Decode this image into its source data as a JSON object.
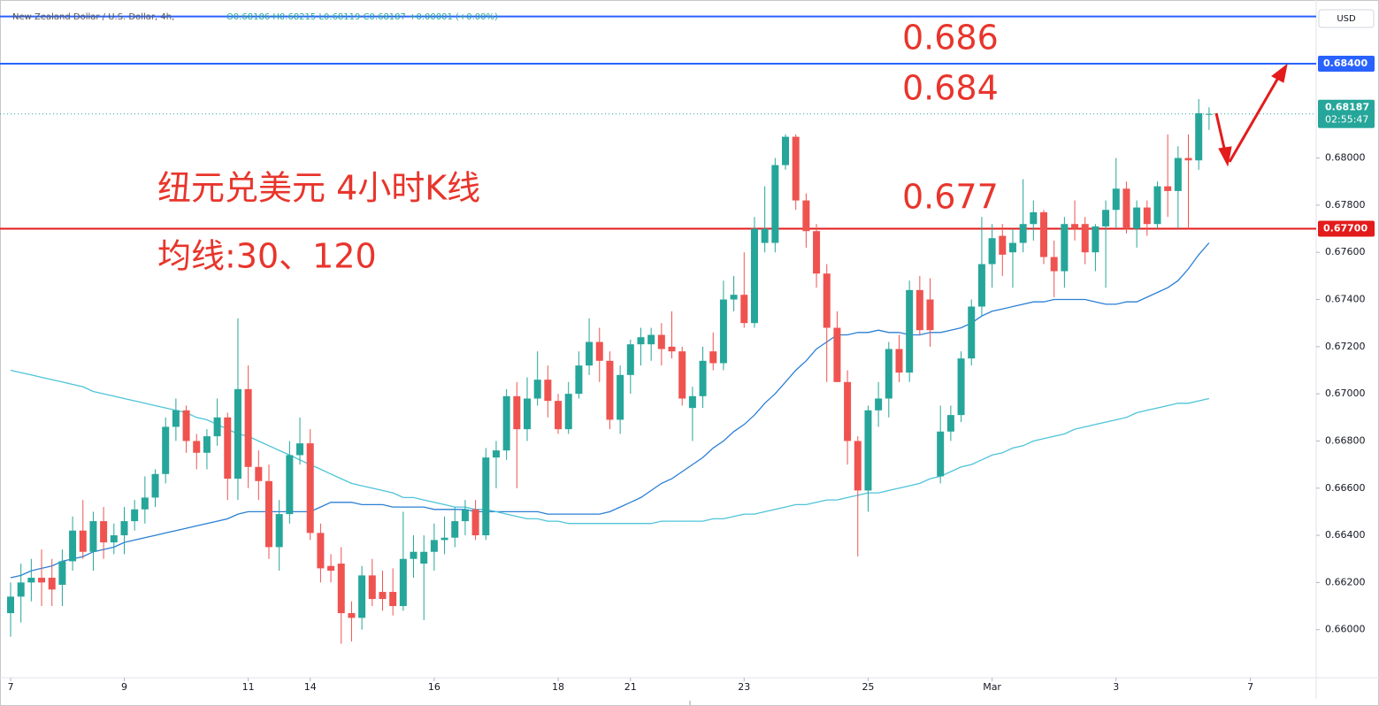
{
  "chart_data": {
    "type": "candlestick",
    "title": "New Zealand Dollar / U.S. Dollar, 4h,",
    "legend_text": "O0.68186 H0.68215 L0.68119 C0.68187 +0.00001 (+0.00%)",
    "currency": "USD",
    "categories": [
      "7",
      null,
      null,
      null,
      null,
      null,
      null,
      null,
      null,
      null,
      null,
      "9",
      null,
      null,
      null,
      null,
      null,
      null,
      null,
      null,
      null,
      null,
      null,
      "11",
      null,
      null,
      null,
      null,
      null,
      "14",
      null,
      null,
      null,
      null,
      null,
      null,
      null,
      null,
      null,
      null,
      null,
      "16",
      null,
      null,
      null,
      null,
      null,
      null,
      null,
      null,
      null,
      null,
      null,
      "18",
      null,
      null,
      null,
      null,
      null,
      null,
      "21",
      null,
      null,
      null,
      null,
      null,
      null,
      null,
      null,
      null,
      null,
      "23",
      null,
      null,
      null,
      null,
      null,
      null,
      null,
      null,
      null,
      null,
      null,
      "25",
      null,
      null,
      null,
      null,
      null,
      null,
      null,
      null,
      null,
      null,
      null,
      "Mar",
      null,
      null,
      null,
      null,
      null,
      null,
      null,
      null,
      null,
      null,
      null,
      "3",
      null,
      null,
      null,
      null,
      null,
      null,
      null,
      null,
      null,
      null,
      null,
      null,
      "7"
    ],
    "open": [
      0.6607,
      0.6614,
      0.662,
      0.6622,
      0.6622,
      0.6619,
      0.6629,
      0.6642,
      0.6633,
      0.6646,
      0.6637,
      0.664,
      0.6646,
      0.6651,
      0.6656,
      0.6666,
      0.6686,
      0.6693,
      0.668,
      0.6675,
      0.6682,
      0.669,
      0.6664,
      0.6702,
      0.6669,
      0.6663,
      0.6635,
      0.6649,
      0.6674,
      0.6679,
      0.6641,
      0.6627,
      0.6628,
      0.6607,
      0.6605,
      0.6623,
      0.6616,
      0.6616,
      0.661,
      0.663,
      0.6628,
      0.6633,
      0.6638,
      0.6639,
      0.6646,
      0.6651,
      0.664,
      0.6673,
      0.6676,
      0.6699,
      0.6685,
      0.6698,
      0.6706,
      0.6697,
      0.6685,
      0.67,
      0.6712,
      0.6722,
      0.6714,
      0.6689,
      0.6708,
      0.6721,
      0.6721,
      0.6725,
      0.672,
      0.6718,
      0.6694,
      0.6699,
      0.6718,
      0.6713,
      0.674,
      0.6742,
      0.673,
      0.6764,
      0.6764,
      0.6797,
      0.6809,
      0.6782,
      0.6769,
      0.6751,
      0.6728,
      0.6705,
      0.668,
      0.6659,
      0.6693,
      0.6698,
      0.6719,
      0.6709,
      0.6744,
      0.674,
      0.6665,
      0.6684,
      0.6691,
      0.6715,
      0.6737,
      0.6755,
      0.6767,
      0.676,
      0.6764,
      0.6772,
      0.6777,
      0.6758,
      0.6752,
      0.6772,
      0.6772,
      0.676,
      0.6771,
      0.6778,
      0.6787,
      0.677,
      0.6779,
      0.6772,
      0.6788,
      0.6786,
      0.68,
      0.6799,
      0.68186,
      null,
      null,
      null,
      null
    ],
    "high": [
      0.662,
      0.6628,
      0.663,
      0.6634,
      0.663,
      0.6634,
      0.6648,
      0.6655,
      0.665,
      0.6652,
      0.6645,
      0.6652,
      0.6655,
      0.6665,
      0.6668,
      0.669,
      0.6698,
      0.6695,
      0.6683,
      0.6685,
      0.6698,
      0.6692,
      0.6732,
      0.6712,
      0.6676,
      0.667,
      0.6655,
      0.668,
      0.669,
      0.6685,
      0.6645,
      0.6632,
      0.6635,
      0.6612,
      0.6627,
      0.663,
      0.6625,
      0.6626,
      0.665,
      0.664,
      0.664,
      0.6645,
      0.6648,
      0.6652,
      0.6655,
      0.6655,
      0.6677,
      0.668,
      0.6702,
      0.6705,
      0.6707,
      0.6718,
      0.6712,
      0.67,
      0.6705,
      0.6718,
      0.6732,
      0.6728,
      0.6718,
      0.6712,
      0.6723,
      0.6728,
      0.6728,
      0.673,
      0.6735,
      0.672,
      0.6703,
      0.672,
      0.6726,
      0.6748,
      0.675,
      0.676,
      0.6775,
      0.6788,
      0.68,
      0.681,
      0.681,
      0.6785,
      0.6772,
      0.6755,
      0.6735,
      0.671,
      0.6682,
      0.6695,
      0.6705,
      0.6722,
      0.6725,
      0.6748,
      0.675,
      0.6749,
      0.6695,
      0.6695,
      0.6718,
      0.674,
      0.6775,
      0.6772,
      0.6772,
      0.677,
      0.6791,
      0.6782,
      0.6778,
      0.6765,
      0.6775,
      0.6782,
      0.6775,
      0.6772,
      0.6782,
      0.68,
      0.679,
      0.6782,
      0.6782,
      0.679,
      0.681,
      0.6805,
      0.681,
      0.6825,
      0.68215,
      null,
      null,
      null,
      null
    ],
    "low": [
      0.6597,
      0.6603,
      0.6612,
      0.661,
      0.661,
      0.661,
      0.6625,
      0.663,
      0.6625,
      0.663,
      0.6632,
      0.6632,
      0.6642,
      0.6645,
      0.6652,
      0.6662,
      0.668,
      0.6675,
      0.6668,
      0.6668,
      0.6678,
      0.6655,
      0.6655,
      0.666,
      0.6655,
      0.663,
      0.6625,
      0.6645,
      0.667,
      0.6638,
      0.662,
      0.662,
      0.6594,
      0.6595,
      0.66,
      0.661,
      0.6608,
      0.6606,
      0.6608,
      0.6622,
      0.6604,
      0.6625,
      0.6632,
      0.6635,
      0.664,
      0.6638,
      0.6638,
      0.666,
      0.6672,
      0.666,
      0.668,
      0.6695,
      0.669,
      0.6683,
      0.6683,
      0.6698,
      0.6708,
      0.6705,
      0.6685,
      0.6683,
      0.67,
      0.6712,
      0.6714,
      0.6712,
      0.6715,
      0.6695,
      0.668,
      0.6694,
      0.671,
      0.671,
      0.6735,
      0.6728,
      0.6728,
      0.676,
      0.676,
      0.6795,
      0.6778,
      0.6762,
      0.6745,
      0.6705,
      0.6705,
      0.667,
      0.6631,
      0.665,
      0.6686,
      0.669,
      0.6705,
      0.6705,
      0.6725,
      0.672,
      0.6662,
      0.668,
      0.6688,
      0.6712,
      0.6733,
      0.6745,
      0.675,
      0.6745,
      0.676,
      0.6765,
      0.6755,
      0.6741,
      0.6745,
      0.6765,
      0.6755,
      0.6752,
      0.6745,
      0.677,
      0.6768,
      0.6762,
      0.6767,
      0.677,
      0.6775,
      0.677,
      0.677,
      0.6795,
      0.68119,
      null,
      null,
      null,
      null
    ],
    "close": [
      0.6614,
      0.662,
      0.6622,
      0.662,
      0.6617,
      0.6629,
      0.6642,
      0.6633,
      0.6646,
      0.6637,
      0.664,
      0.6646,
      0.6651,
      0.6656,
      0.6666,
      0.6686,
      0.6693,
      0.668,
      0.6675,
      0.6682,
      0.669,
      0.6664,
      0.6702,
      0.6669,
      0.6663,
      0.6635,
      0.6649,
      0.6674,
      0.6679,
      0.6641,
      0.6626,
      0.6625,
      0.6607,
      0.6605,
      0.6623,
      0.6613,
      0.6613,
      0.661,
      0.663,
      0.6633,
      0.6633,
      0.6638,
      0.6639,
      0.6646,
      0.6651,
      0.664,
      0.6673,
      0.6676,
      0.6699,
      0.6685,
      0.6698,
      0.6706,
      0.6697,
      0.6685,
      0.67,
      0.6712,
      0.6722,
      0.6714,
      0.6689,
      0.6708,
      0.6721,
      0.6724,
      0.6725,
      0.6719,
      0.6718,
      0.6698,
      0.6699,
      0.6714,
      0.6713,
      0.674,
      0.6742,
      0.673,
      0.677,
      0.677,
      0.6797,
      0.6809,
      0.6782,
      0.6769,
      0.6751,
      0.6728,
      0.6705,
      0.668,
      0.6659,
      0.6693,
      0.6698,
      0.6719,
      0.6709,
      0.6744,
      0.6727,
      0.6727,
      0.6684,
      0.6691,
      0.6715,
      0.6737,
      0.6755,
      0.6766,
      0.6759,
      0.6764,
      0.6772,
      0.6777,
      0.6758,
      0.6752,
      0.6772,
      0.677,
      0.676,
      0.6771,
      0.6778,
      0.6787,
      0.677,
      0.6779,
      0.6772,
      0.6788,
      0.6786,
      0.68,
      0.6799,
      0.6819,
      0.68187,
      null,
      null,
      null,
      null
    ],
    "up_color": "#26a69a",
    "down_color": "#ef5350",
    "series": [
      {
        "type": "line",
        "color": "#2a7fd4",
        "values": [
          0.6622,
          0.6623,
          0.6625,
          0.6626,
          0.6627,
          0.6629,
          0.663,
          0.6631,
          0.6633,
          0.6634,
          0.6635,
          0.6637,
          0.6638,
          0.6639,
          0.664,
          0.6641,
          0.6642,
          0.6643,
          0.6644,
          0.6645,
          0.6646,
          0.6647,
          0.6649,
          0.665,
          0.665,
          0.665,
          0.665,
          0.665,
          0.665,
          0.665,
          0.6652,
          0.6654,
          0.6654,
          0.6654,
          0.6653,
          0.6653,
          0.6653,
          0.6652,
          0.6652,
          0.6652,
          0.6652,
          0.6651,
          0.6651,
          0.6651,
          0.6651,
          0.665,
          0.665,
          0.665,
          0.665,
          0.665,
          0.665,
          0.665,
          0.6649,
          0.6649,
          0.6649,
          0.6649,
          0.6649,
          0.6649,
          0.665,
          0.6652,
          0.6654,
          0.6656,
          0.6659,
          0.6662,
          0.6664,
          0.6667,
          0.667,
          0.6673,
          0.6677,
          0.668,
          0.6684,
          0.6687,
          0.6691,
          0.6696,
          0.67,
          0.6705,
          0.671,
          0.6714,
          0.6719,
          0.6722,
          0.6725,
          0.6725,
          0.6726,
          0.6726,
          0.6727,
          0.6726,
          0.6726,
          0.6725,
          0.6725,
          0.6726,
          0.6726,
          0.6727,
          0.6728,
          0.673,
          0.6733,
          0.6735,
          0.6736,
          0.6737,
          0.6738,
          0.6739,
          0.6739,
          0.674,
          0.674,
          0.674,
          0.674,
          0.6739,
          0.6738,
          0.6738,
          0.6739,
          0.6739,
          0.6741,
          0.6743,
          0.6745,
          0.6748,
          0.6753,
          0.6759,
          0.6764,
          null,
          null,
          null,
          null
        ]
      },
      {
        "type": "line",
        "color": "#4dc4d8",
        "values": [
          0.671,
          0.6709,
          0.6708,
          0.6707,
          0.6706,
          0.6705,
          0.6704,
          0.6703,
          0.6701,
          0.67,
          0.6699,
          0.6698,
          0.6697,
          0.6696,
          0.6695,
          0.6694,
          0.6693,
          0.6692,
          0.669,
          0.6689,
          0.6687,
          0.6685,
          0.6683,
          0.6682,
          0.668,
          0.6678,
          0.6676,
          0.6674,
          0.6672,
          0.667,
          0.6668,
          0.6666,
          0.6664,
          0.6662,
          0.6661,
          0.666,
          0.6659,
          0.6658,
          0.6656,
          0.6656,
          0.6655,
          0.6654,
          0.6653,
          0.6652,
          0.6652,
          0.6651,
          0.6651,
          0.665,
          0.6649,
          0.6648,
          0.6647,
          0.6647,
          0.6646,
          0.6646,
          0.6645,
          0.6645,
          0.6645,
          0.6645,
          0.6645,
          0.6645,
          0.6645,
          0.6645,
          0.6645,
          0.6646,
          0.6646,
          0.6646,
          0.6646,
          0.6646,
          0.6647,
          0.6647,
          0.6648,
          0.6649,
          0.6649,
          0.665,
          0.6651,
          0.6652,
          0.6653,
          0.6653,
          0.6654,
          0.6655,
          0.6655,
          0.6656,
          0.6657,
          0.6658,
          0.6658,
          0.6659,
          0.666,
          0.6661,
          0.6662,
          0.6664,
          0.6665,
          0.6667,
          0.6669,
          0.667,
          0.6672,
          0.6674,
          0.6675,
          0.6677,
          0.6678,
          0.668,
          0.6681,
          0.6682,
          0.6683,
          0.6685,
          0.6686,
          0.6687,
          0.6688,
          0.6689,
          0.669,
          0.6692,
          0.6693,
          0.6694,
          0.6695,
          0.6696,
          0.6696,
          0.6697,
          0.6698,
          null,
          null,
          null,
          null
        ]
      }
    ],
    "ylim": [
      0.658,
      0.6864
    ],
    "yticks": [
      {
        "value": 0.66,
        "label": "0.66000"
      },
      {
        "value": 0.662,
        "label": "0.66200"
      },
      {
        "value": 0.664,
        "label": "0.66400"
      },
      {
        "value": 0.666,
        "label": "0.66600"
      },
      {
        "value": 0.668,
        "label": "0.66800"
      },
      {
        "value": 0.67,
        "label": "0.67000"
      },
      {
        "value": 0.672,
        "label": "0.67200"
      },
      {
        "value": 0.674,
        "label": "0.67400"
      },
      {
        "value": 0.676,
        "label": "0.67600"
      },
      {
        "value": 0.678,
        "label": "0.67800"
      },
      {
        "value": 0.68,
        "label": "0.68000"
      }
    ],
    "grid": false,
    "hlines": [
      {
        "value": 0.686,
        "color": "#2962ff"
      },
      {
        "value": 0.684,
        "color": "#2962ff",
        "label": "0.68400"
      },
      {
        "value": 0.677,
        "color": "#e31b1b",
        "label": "0.67700"
      }
    ],
    "last_price": {
      "value": 0.68187,
      "label": "0.68187",
      "timer": "02:55:47",
      "color": "#26a69a"
    },
    "annotations": [
      "0.686",
      "0.684",
      "0.677",
      "纽元兑美元 4小时K线",
      "均线:30、120"
    ]
  }
}
